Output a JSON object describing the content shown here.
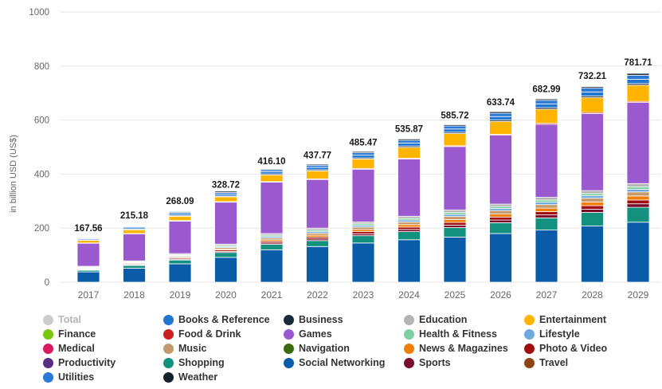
{
  "chart_data": {
    "type": "stacked-bar",
    "title": "",
    "xlabel": "",
    "ylabel": "in billion USD (US$)",
    "ylim": [
      0,
      1000
    ],
    "yticks": [
      0,
      200,
      400,
      600,
      800,
      1000
    ],
    "categories": [
      "2017",
      "2018",
      "2019",
      "2020",
      "2021",
      "2022",
      "2023",
      "2024",
      "2025",
      "2026",
      "2027",
      "2028",
      "2029"
    ],
    "total_labels": [
      "167.56",
      "215.18",
      "268.09",
      "328.72",
      "416.10",
      "437.77",
      "485.47",
      "535.87",
      "585.72",
      "633.74",
      "682.99",
      "732.21",
      "781.71"
    ],
    "totals": [
      167.56,
      215.18,
      268.09,
      328.72,
      416.1,
      437.77,
      485.47,
      535.87,
      585.72,
      633.74,
      682.99,
      732.21,
      781.71
    ],
    "stack_order": [
      "Social Networking",
      "Shopping",
      "Sports",
      "Photo & Video",
      "News & Magazines",
      "Music",
      "Lifestyle",
      "Health & Fitness",
      "Education",
      "Games",
      "Food & Drink",
      "Entertainment",
      "Business",
      "Books & Reference",
      "Utilities",
      "Weather"
    ],
    "series": [
      {
        "name": "Social Networking",
        "color": "#0a5ca8",
        "values": [
          38,
          52,
          68,
          92,
          120,
          132,
          145,
          157,
          167,
          180,
          193,
          208,
          222
        ]
      },
      {
        "name": "Shopping",
        "color": "#12917e",
        "values": [
          6,
          10,
          14,
          18,
          20,
          22,
          27,
          30,
          35,
          40,
          45,
          50,
          55
        ]
      },
      {
        "name": "Sports",
        "color": "#7a0c2e",
        "values": [
          2,
          2,
          3,
          4,
          5,
          6,
          7,
          8,
          9,
          10,
          11,
          12,
          13
        ]
      },
      {
        "name": "Photo & Video",
        "color": "#a00f0f",
        "values": [
          2,
          3,
          4,
          5,
          6,
          7,
          8,
          9,
          10,
          11,
          12,
          13,
          14
        ]
      },
      {
        "name": "News & Magazines",
        "color": "#f07f09",
        "values": [
          2,
          2,
          3,
          4,
          6,
          7,
          8,
          9,
          11,
          12,
          13,
          14,
          15
        ]
      },
      {
        "name": "Music",
        "color": "#c49a6c",
        "values": [
          2,
          3,
          4,
          5,
          7,
          8,
          9,
          10,
          11,
          12,
          13,
          14,
          15
        ]
      },
      {
        "name": "Lifestyle",
        "color": "#6fa8dc",
        "values": [
          2,
          2,
          3,
          4,
          5,
          6,
          6,
          7,
          8,
          8,
          9,
          9,
          10
        ]
      },
      {
        "name": "Health & Fitness",
        "color": "#7dcea0",
        "values": [
          2,
          2,
          3,
          4,
          5,
          5,
          6,
          6,
          7,
          7,
          8,
          8,
          9
        ]
      },
      {
        "name": "Education",
        "color": "#b4b4b4",
        "values": [
          3,
          3,
          4,
          5,
          6,
          7,
          7,
          8,
          9,
          9,
          10,
          11,
          12
        ]
      },
      {
        "name": "Games",
        "color": "#9b59d0",
        "values": [
          85,
          100,
          120,
          155,
          190,
          180,
          195,
          212,
          235,
          255,
          270,
          285,
          300
        ]
      },
      {
        "name": "Food & Drink",
        "color": "#cc1f1f",
        "values": [
          1,
          1,
          2,
          2,
          2,
          2,
          3,
          3,
          3,
          3,
          4,
          4,
          4
        ]
      },
      {
        "name": "Entertainment",
        "color": "#ffb400",
        "values": [
          10,
          14,
          16,
          18,
          25,
          30,
          35,
          40,
          45,
          48,
          52,
          55,
          60
        ]
      },
      {
        "name": "Business",
        "color": "#1a2a3a",
        "values": [
          2,
          2,
          3,
          3,
          4,
          4,
          4,
          5,
          5,
          5,
          6,
          6,
          6
        ]
      },
      {
        "name": "Books & Reference",
        "color": "#2176d2",
        "values": [
          4,
          5,
          6,
          7,
          8,
          9,
          10,
          11,
          12,
          13,
          14,
          15,
          16
        ]
      },
      {
        "name": "Utilities",
        "color": "#2a78d6",
        "values": [
          3,
          4,
          5,
          6,
          7,
          8,
          9,
          10,
          11,
          12,
          13,
          14,
          15
        ]
      },
      {
        "name": "Weather",
        "color": "#14222e",
        "values": [
          1.56,
          2.18,
          3.09,
          4.72,
          3.1,
          3.77,
          4.47,
          4.87,
          4.72,
          5.74,
          4.99,
          5.21,
          6.71
        ]
      }
    ],
    "legend": [
      {
        "name": "Total",
        "color": "#cccccc"
      },
      {
        "name": "Books & Reference",
        "color": "#2176d2"
      },
      {
        "name": "Business",
        "color": "#1a2a3a"
      },
      {
        "name": "Education",
        "color": "#b4b4b4"
      },
      {
        "name": "Entertainment",
        "color": "#ffb400"
      },
      {
        "name": "Finance",
        "color": "#7ac70c"
      },
      {
        "name": "Food & Drink",
        "color": "#cc1f1f"
      },
      {
        "name": "Games",
        "color": "#9b59d0"
      },
      {
        "name": "Health & Fitness",
        "color": "#7dcea0"
      },
      {
        "name": "Lifestyle",
        "color": "#6fa8dc"
      },
      {
        "name": "Medical",
        "color": "#d81b60"
      },
      {
        "name": "Music",
        "color": "#c49a6c"
      },
      {
        "name": "Navigation",
        "color": "#3a6b10"
      },
      {
        "name": "News & Magazines",
        "color": "#f07f09"
      },
      {
        "name": "Photo & Video",
        "color": "#a00f0f"
      },
      {
        "name": "Productivity",
        "color": "#5b2c83"
      },
      {
        "name": "Shopping",
        "color": "#12917e"
      },
      {
        "name": "Social Networking",
        "color": "#0a5ca8"
      },
      {
        "name": "Sports",
        "color": "#7a0c2e"
      },
      {
        "name": "Travel",
        "color": "#8b4513"
      },
      {
        "name": "Utilities",
        "color": "#2a78d6"
      },
      {
        "name": "Weather",
        "color": "#14222e"
      }
    ]
  }
}
